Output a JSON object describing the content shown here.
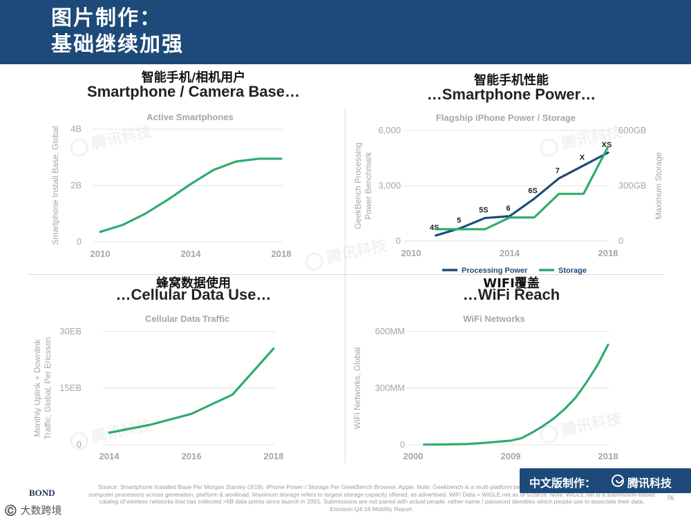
{
  "header": {
    "title_line1": "图片制作：",
    "title_line2": "基础继续加强"
  },
  "watermark_text": "腾讯科技",
  "panels": {
    "tl": {
      "title_cn": "智能手机/相机用户",
      "title_en": "Smartphone / Camera Base…"
    },
    "tr": {
      "title_cn": "智能手机性能",
      "title_en": "…Smartphone Power…"
    },
    "bl": {
      "title_cn": "蜂窝数据使用",
      "title_en": "…Cellular Data Use…"
    },
    "br": {
      "title_cn": "WIFI覆盖",
      "title_en": "…WiFi Reach"
    }
  },
  "chart_data": [
    {
      "id": "active-smartphones",
      "type": "line",
      "title": "Active Smartphones",
      "ylabel": "Smartphone Install Base, Global",
      "xlim": [
        2010,
        2018
      ],
      "ylim": [
        0,
        4
      ],
      "x_ticks": [
        "2010",
        "2014",
        "2018"
      ],
      "y_ticks": [
        "0",
        "2B",
        "4B"
      ],
      "grid": true,
      "series": [
        {
          "color": "#2eab6e",
          "x": [
            2010,
            2011,
            2012,
            2013,
            2014,
            2015,
            2016,
            2017,
            2018
          ],
          "y": [
            0.35,
            0.6,
            1.0,
            1.5,
            2.05,
            2.55,
            2.85,
            2.95,
            2.95
          ]
        }
      ]
    },
    {
      "id": "iphone-power-storage",
      "type": "line",
      "title": "Flagship iPhone Power / Storage",
      "ylabel": "GeekBench Processing Power Benchmark",
      "y2label": "Maximum Storage",
      "xlim": [
        2010,
        2018
      ],
      "ylim": [
        0,
        6000
      ],
      "y2lim": [
        0,
        600
      ],
      "x_ticks": [
        "2010",
        "2014",
        "2018"
      ],
      "y_ticks": [
        "0",
        "3,000",
        "6,000"
      ],
      "y2_ticks": [
        "0",
        "300GB",
        "600GB"
      ],
      "grid": true,
      "legend_position": "bottom",
      "series": [
        {
          "name": "Processing Power",
          "color": "#1d4a78",
          "x": [
            2011,
            2012,
            2013,
            2014,
            2015,
            2016,
            2017,
            2018
          ],
          "y": [
            300,
            700,
            1250,
            1350,
            2300,
            3400,
            4100,
            4800
          ],
          "point_labels": [
            "4S",
            "5",
            "5S",
            "6",
            "6S",
            "7",
            "X",
            "XS"
          ]
        },
        {
          "name": "Storage",
          "color": "#2eab6e",
          "axis": "y2",
          "x": [
            2011,
            2012,
            2013,
            2014,
            2015,
            2016,
            2017,
            2018
          ],
          "y": [
            64,
            64,
            64,
            128,
            128,
            256,
            256,
            512
          ]
        }
      ]
    },
    {
      "id": "cellular-data-traffic",
      "type": "line",
      "title": "Cellular Data Traffic",
      "ylabel": "Monthly Uplink + Downlink Traffic, Global, Per Ericsson",
      "xlim": [
        2014,
        2018
      ],
      "ylim": [
        0,
        30
      ],
      "x_ticks": [
        "2014",
        "2016",
        "2018"
      ],
      "y_ticks": [
        "0",
        "15EB",
        "30EB"
      ],
      "grid": true,
      "series": [
        {
          "color": "#2eab6e",
          "x": [
            2014,
            2015,
            2016,
            2017,
            2018
          ],
          "y": [
            3.2,
            5.3,
            8.2,
            13.3,
            25.5
          ]
        }
      ]
    },
    {
      "id": "wifi-networks",
      "type": "line",
      "title": "WiFi Networks",
      "ylabel": "WiFi Networks, Global",
      "xlim": [
        2000,
        2018
      ],
      "ylim": [
        0,
        600
      ],
      "x_ticks": [
        "2000",
        "2009",
        "2018"
      ],
      "y_ticks": [
        "0",
        "300MM",
        "600MM"
      ],
      "grid": true,
      "series": [
        {
          "color": "#2eab6e",
          "x": [
            2001,
            2003,
            2005,
            2007,
            2009,
            2010,
            2011,
            2012,
            2013,
            2014,
            2015,
            2016,
            2017,
            2018
          ],
          "y": [
            1,
            2,
            4,
            12,
            22,
            35,
            65,
            100,
            140,
            190,
            250,
            330,
            420,
            530
          ]
        }
      ]
    }
  ],
  "source_text": "Source: Smartphone Installed Base Per Morgan Stanley (3/19). iPhone Power / Storage Per GeekBench Browser, Apple. Note: Geekbench is a multi-platform benchmark tool designed to compare the power of computer processors across generation, platform & workload. Maximum storage refers to largest storage capacity offered, as advertised. WiFi Data = WiGLE.net as of 5/29/18. Note: WiGLE.net is a submission-based catalog of wireless networks that has collected >6B data points since launch in 2001. Submissions are not paired with actual people, rather name / password identities which people use to associate their data. Ericsson Q4:18 Mobility Report.",
  "page_number": "76",
  "badge": {
    "label": "中文版制作：",
    "brand": "腾讯科技"
  },
  "bond_label": "BOND",
  "corner_watermark": "©️ 大数跨境",
  "colors": {
    "header": "#1d4a78",
    "green": "#2eab6e",
    "navy": "#1d4a78",
    "axis": "#a6a6a6"
  }
}
